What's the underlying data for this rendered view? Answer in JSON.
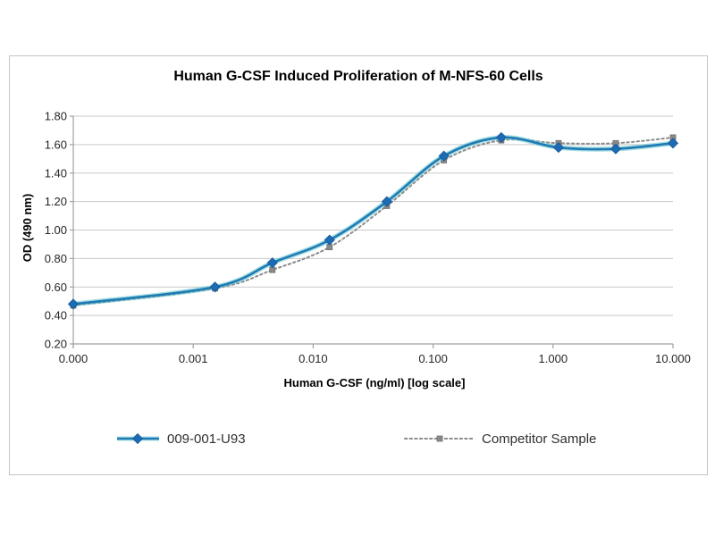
{
  "chart_data": {
    "type": "line",
    "title": "Human G-CSF Induced Proliferation of M-NFS-60 Cells",
    "xlabel": "Human G-CSF (ng/ml) [log scale]",
    "ylabel": "OD (490 nm)",
    "x_scale": "log-with-zero-at-origin",
    "x_tick_labels": [
      "0.000",
      "0.001",
      "0.010",
      "0.100",
      "1.000",
      "10.000"
    ],
    "y_tick_labels": [
      "0.20",
      "0.40",
      "0.60",
      "0.80",
      "1.00",
      "1.20",
      "1.40",
      "1.60",
      "1.80"
    ],
    "y_tick_values": [
      0.2,
      0.4,
      0.6,
      0.8,
      1.0,
      1.2,
      1.4,
      1.6,
      1.8
    ],
    "ylim": [
      0.2,
      1.8
    ],
    "grid": "horizontal",
    "legend_position": "bottom",
    "x": [
      0,
      0.00152,
      0.00457,
      0.0137,
      0.0412,
      0.123,
      0.37,
      1.111,
      3.333,
      10
    ],
    "series": [
      {
        "name": "009-001-U93",
        "line_style": "solid",
        "marker": "diamond",
        "color": "#1F7AB4",
        "glow_color": "rgba(95,196,205,0.55)",
        "marker_color": "#1C6BB4",
        "values": [
          0.48,
          0.6,
          0.77,
          0.93,
          1.2,
          1.52,
          1.65,
          1.58,
          1.57,
          1.61
        ]
      },
      {
        "name": "Competitor Sample",
        "line_style": "dotted",
        "marker": "square",
        "color": "#8C8C8C",
        "marker_color": "#8A8A8A",
        "values": [
          0.47,
          0.59,
          0.72,
          0.88,
          1.17,
          1.49,
          1.63,
          1.61,
          1.61,
          1.65
        ]
      }
    ],
    "colors": {
      "grid": "#c9c9c9",
      "axis": "#a0a0a0",
      "tick_text": "#262626",
      "title_text": "#000000",
      "legend_text": "#303030",
      "frame_border": "#c4c4c4",
      "background": "#ffffff"
    }
  }
}
